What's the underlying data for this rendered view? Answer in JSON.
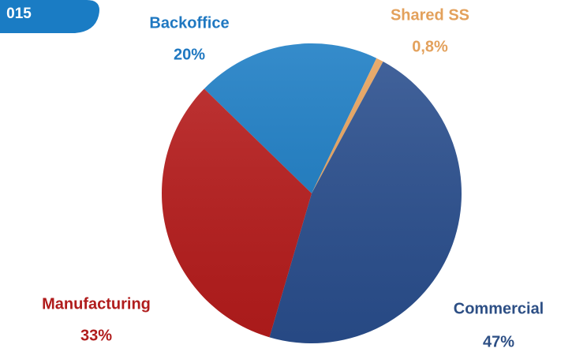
{
  "badge": "015",
  "chart_data": {
    "type": "pie",
    "categories": [
      "Backoffice",
      "Shared SS",
      "Commercial",
      "Manufacturing"
    ],
    "values": [
      20,
      0.8,
      47,
      33
    ],
    "value_labels": [
      "20%",
      "0,8%",
      "47%",
      "33%"
    ],
    "colors": [
      "#1a7cc4",
      "#e8a25b",
      "#2a4f8f",
      "#b81c1c"
    ],
    "label_colors": [
      "#1f78c1",
      "#e3a15c",
      "#2d4f85",
      "#b01c1c"
    ]
  }
}
